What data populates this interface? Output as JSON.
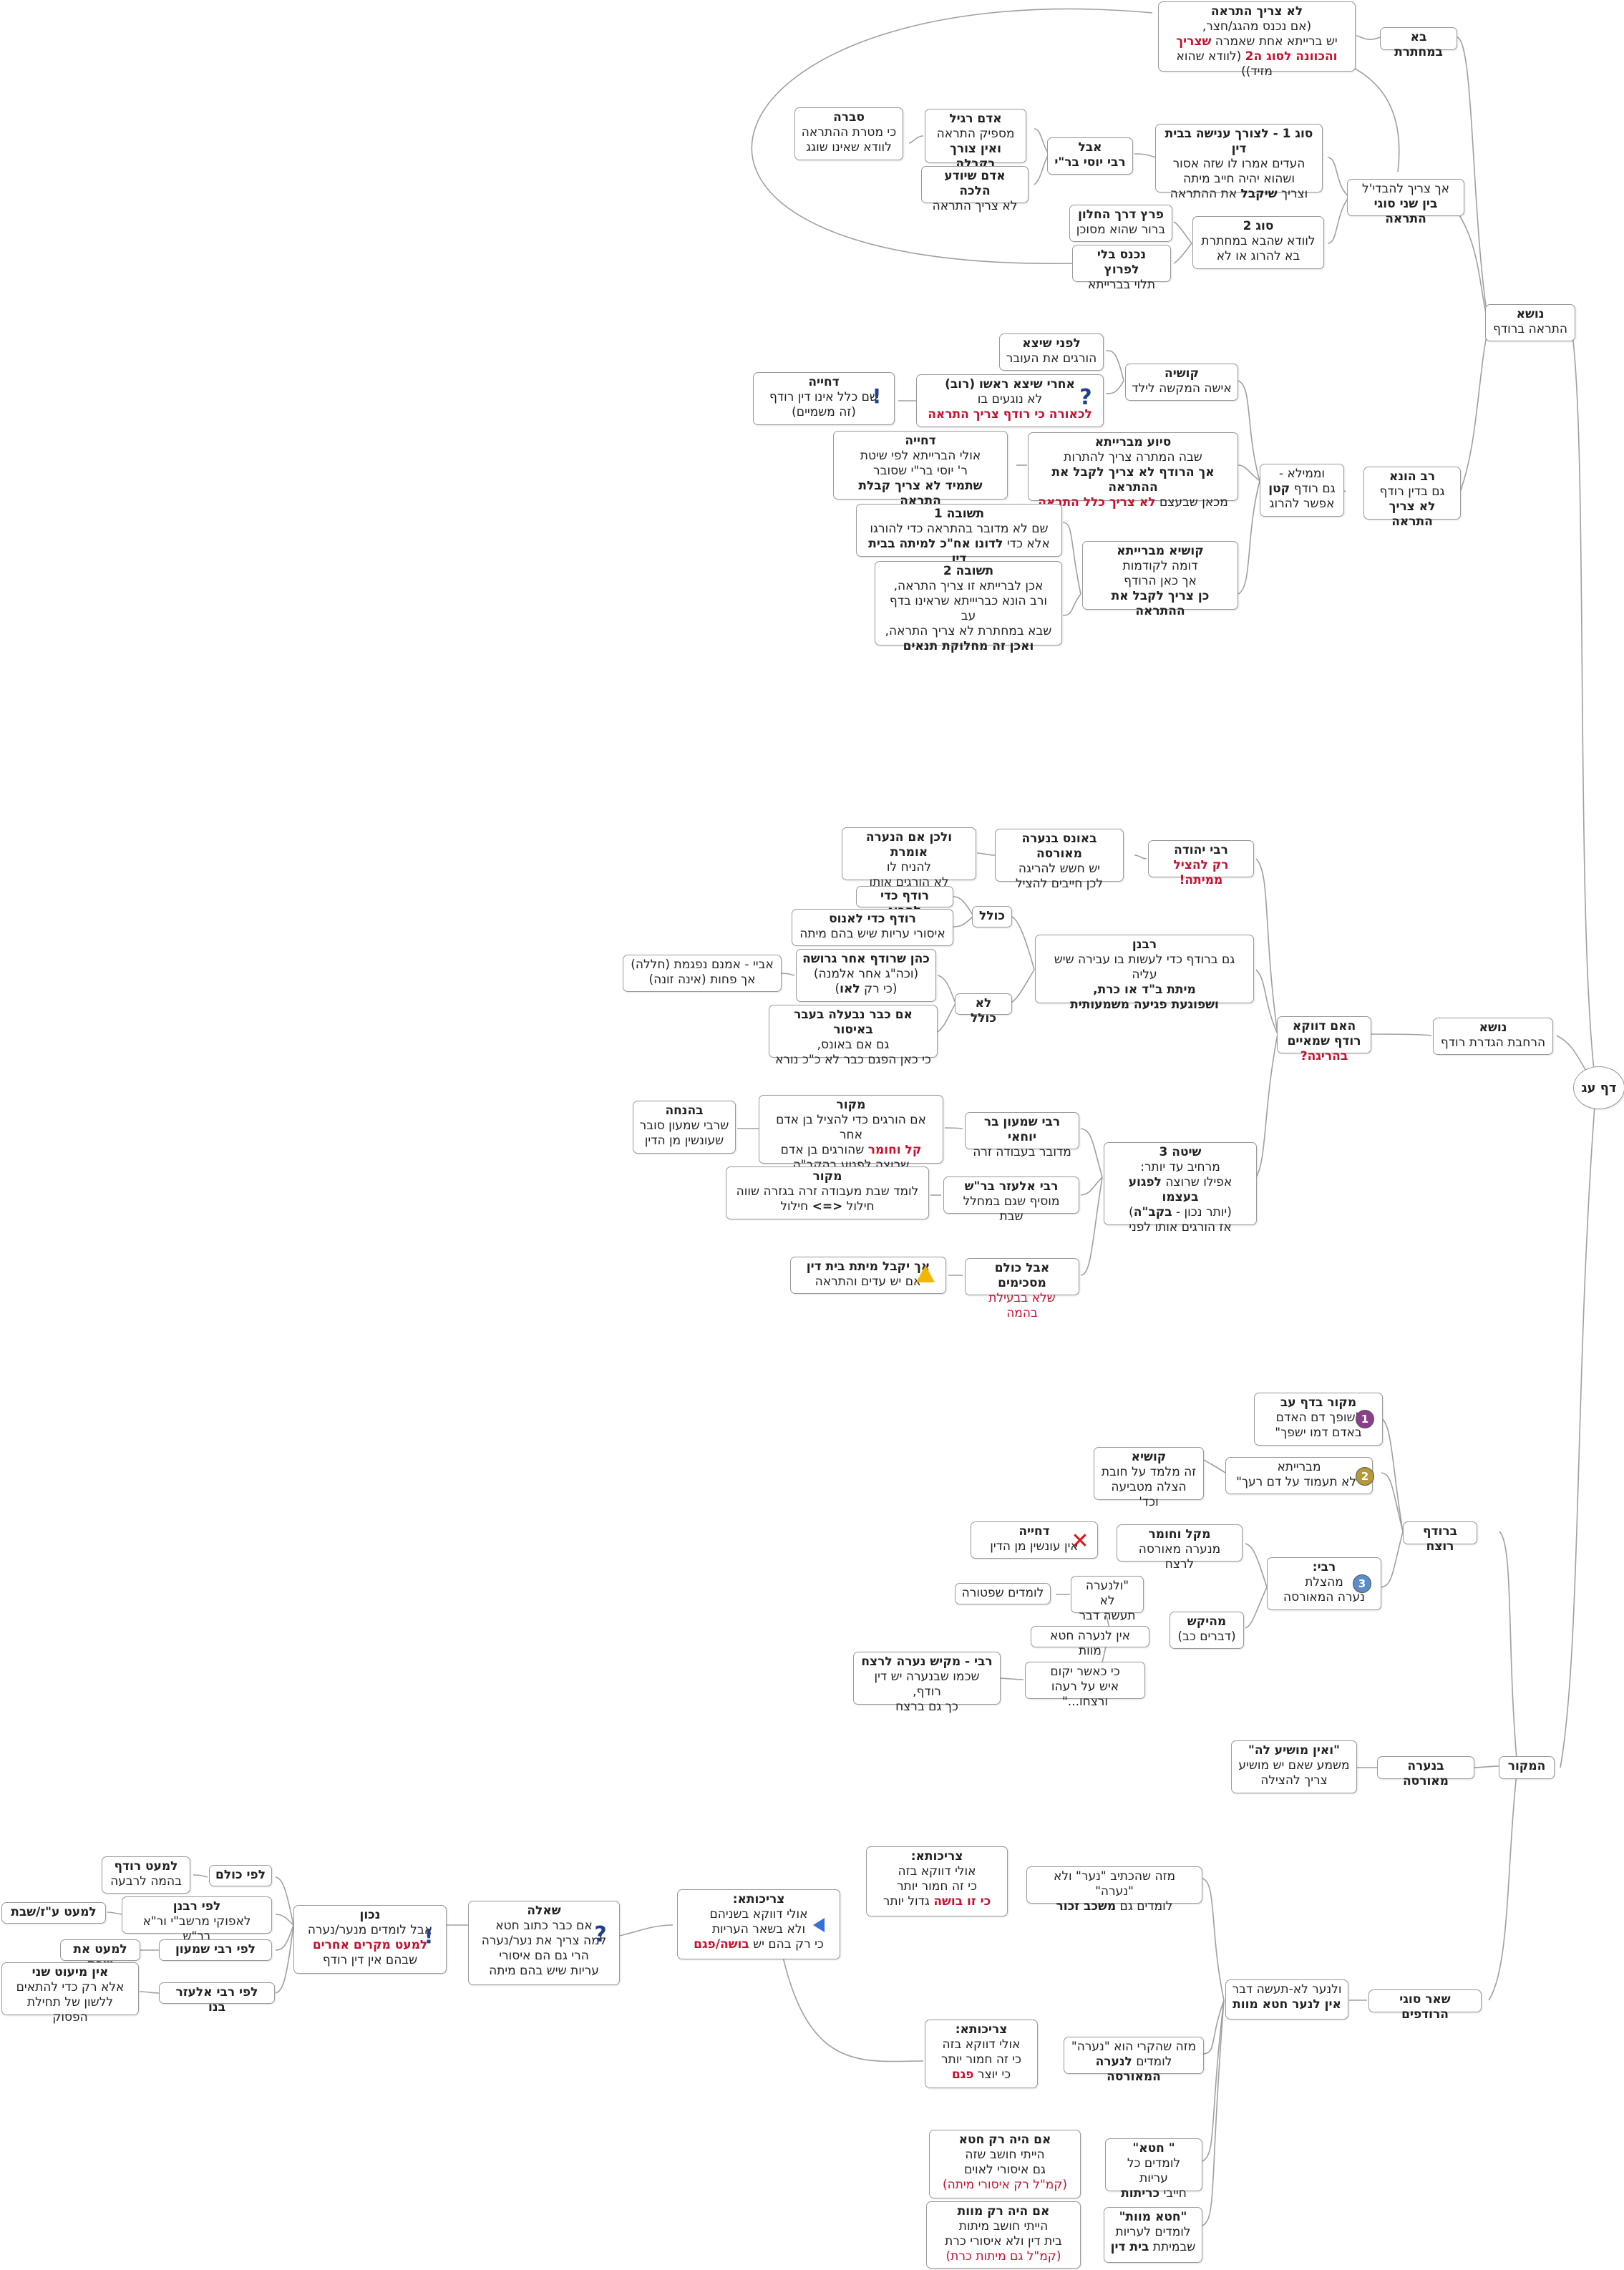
{
  "root": "דף עג",
  "s1": {
    "topic": [
      "נושא",
      "התראה ברודף"
    ],
    "ba": "בא במחתרת",
    "lo_tzarich": [
      "לא צריך התראה",
      "(אם נכנס מהגג/חצר,",
      "יש ברייתא אחת שאמרה ",
      "שצריך",
      "והכוונה לסוג ה2",
      " (לוודא שהוא מזיד))"
    ],
    "ach": [
      "אך צריך להבדי'ל",
      "בין שני סוגי התראה"
    ],
    "sug1": [
      "סוג 1 - לצורך ענישה בבית דין",
      "העדים אמרו לו שזה אסור",
      "ושהוא יהיה חייב מיתה",
      "וצריך ",
      "שיקבל",
      " את ההתראה"
    ],
    "aval": [
      "אבל",
      "רבי יוסי  בר\"י"
    ],
    "adam_ragil": [
      "אדם רגיל",
      "מספיק התראה",
      "ואין צורך בקבלה"
    ],
    "sevara": [
      "סברה",
      "כי מטרת ההתראה",
      "לוודא שאינו שוגג"
    ],
    "adam_yodea": [
      "אדם שיודע הלכה",
      "לא צריך התראה"
    ],
    "sug2": [
      "סוג 2",
      "לוודא שהבא במחתרת",
      "בא להרוג או לא"
    ],
    "paratz": [
      "פרץ דרך החלון",
      "ברור שהוא מסוכן"
    ],
    "nichnas": [
      "נכנס בלי  לפרוץ",
      "תלוי בברייתא"
    ]
  },
  "s2": {
    "rav_huna": [
      "רב הונא",
      "גם בדין רודף",
      "לא צריך התראה"
    ],
    "umimela": [
      "וממילא - ",
      "גם רודף ",
      "קטן",
      "אפשר להרוג"
    ],
    "kushia": [
      "קושיה",
      "אישה המקשה לילד"
    ],
    "lifnei": [
      "לפני שיצא",
      "הורגים את העובר"
    ],
    "acharei": [
      "אחרי שיצא ראשו (רוב)",
      "לא נוגעים בו",
      "לכאורה כי רודף צריך התראה"
    ],
    "dchiya1": [
      "דחייה",
      "שם כלל אינו דין רודף",
      "(זה משמיים)"
    ],
    "siyua": [
      "סיוע מברייתא",
      "שבה המתרה צריך להתרות",
      "אך הרודף לא צריך לקבל את ההתראה",
      "מכאן שבעצם ",
      "לא צריך כלל התראה"
    ],
    "dchiya2": [
      "דחייה",
      "אולי הברייתא לפי שיטת",
      "ר' יוסי בר\"י שסובר",
      "שתמיד לא צריך קבלת התראה"
    ],
    "kushia2": [
      "קושיא מברייתא",
      "דומה לקודמות",
      "אך כאן הרודף",
      "כן צריך לקבל את ההתראה"
    ],
    "tshuva1": [
      "תשובה 1",
      "שם לא מדובר בהתראה כדי להורגו",
      "אלא כדי ",
      "לדונו אח\"כ למיתה בבית דין"
    ],
    "tshuva2": [
      "תשובה 2",
      "אכן לברייתא זו צריך התראה,",
      "ורב הונא כבריייתא שראינו בדף עב",
      "שבא במחתרת לא צריך התראה,",
      "ואכן זה מחלוקת תנאים"
    ]
  },
  "s3": {
    "topic": [
      "נושא",
      "הרחבת הגדרת רודף"
    ],
    "haim": [
      "האם דווקא",
      "רודף שמאיים ",
      "בהריגה?"
    ],
    "r_yehuda": [
      "רבי יהודה",
      "רק להציל ממיתה!"
    ],
    "beones": [
      "באונס בנערה מאורסה",
      "יש חשש להריגה",
      "לכן חייבים להציל"
    ],
    "velachen": [
      "ולכן אם הנערה אומרת",
      "להניח לו",
      "לא הורגים אותו"
    ],
    "rabanan": [
      "רבנן",
      "גם ברודף כדי לעשות בו עבירה שיש עליה",
      "מיתת ב\"ד או כרת,",
      "ושפוגעת פגיעה משמעותית"
    ],
    "kolel": "כולל",
    "lo_kolel": "לא כולל",
    "rodef_laharog": "רודף כדי להרוג",
    "rodef_leanos": [
      "רודף כדי לאנוס",
      "איסורי עריות שיש בהם מיתה"
    ],
    "kohen": [
      "כהן שרודף אחר גרושה",
      "(וכה\"ג אחר אלמנה)",
      "(כי רק ",
      "לאו",
      ")"
    ],
    "abaye": [
      "אביי - אמנם נפגמת (חללה)",
      "אך פחות (אינה זונה)"
    ],
    "im_kvar": [
      "אם כבר נבעלה בעבר באיסור",
      "גם אם באונס,",
      "כי כאן הפגם כבר לא כ\"כ נורא"
    ],
    "shita3": [
      "שיטה 3",
      "מרחיב עד יותר:",
      "אפילו שרוצה ",
      "לפגוע בעצמו",
      "(יותר נכון - ",
      "בקב\"ה",
      ")",
      "אז הורגים אותו לפני"
    ],
    "rs_yochai": [
      "רבי שמעון בר יוחאי",
      "מדובר בעבודה זרה"
    ],
    "makor1": [
      "מקור",
      "אם הורגים כדי להציל בן אדם אחר",
      "קל וחומר",
      " שהורגים בן אדם",
      "שרוצה לפגוע בהקב\"ה"
    ],
    "behanacha": [
      "בהנחה",
      "שרבי שמעון סובר",
      "שעונשין מן הדין"
    ],
    "r_elazar": [
      "רבי אלעזר בר\"ש",
      "מוסיף שגם במחלל שבת"
    ],
    "makor2": [
      "מקור",
      "לומד שבת מעבודה זרה בגזרה שווה",
      "חילול ",
      "<=>",
      " חילול"
    ],
    "aval_kulam": [
      "אבל כולם מסכימים",
      "שלא בבעילת בהמה"
    ],
    "ach_yekabel": [
      "אך יקבל מיתת בית דין",
      "אם יש עדים והתראה"
    ]
  },
  "s4": {
    "makor": "המקור",
    "berodef": "ברודף רוצח",
    "m1": [
      "מקור בדף עב",
      "\"שופך דם האדם",
      "באדם דמו ישפך\""
    ],
    "m2": [
      "מברייתא",
      "\"לא תעמוד על דם רעך\""
    ],
    "kushia": [
      "קושיא",
      "זה מלמד על חובת",
      "הצלה מטביעה וכד'"
    ],
    "m3": [
      "רבי:",
      "מהצלת",
      "נערה המאורסה"
    ],
    "kal": [
      "מקל וחומר",
      "מנערה מאורסה לרצח"
    ],
    "dchiya": [
      "דחייה",
      "אין עונשין מן הדין"
    ],
    "heikesh": [
      "מהיקש",
      "(דברים כב)"
    ],
    "velanaara": [
      "\"ולנערה לא",
      "תעשה דבר"
    ],
    "lomdim_shpatur": "לומדים שפטורה",
    "ein": "אין לנערה חטא מוות",
    "ki_kaasher": [
      "כי כאשר יקום",
      "איש על רעהו ורצחו...\""
    ],
    "rabbi_makish": [
      "רבי - מקיש נערה לרצח",
      "שכמו שבנערה יש דין רודף,",
      "כך גם ברצח"
    ],
    "benaara": "בנערה מאורסה",
    "vein": [
      "\"ואין מושיע לה\"",
      "משמע שאם יש מושיע",
      "צריך להצילה"
    ]
  },
  "s5": {
    "shear": "שאר סוגי הרודפים",
    "velanaar": [
      "ולנער לא-תעשה דבר",
      "אין לנער חטא מוות"
    ],
    "mize1": [
      "מזה שהכתיב \"נער\" ולא \"נערה\"",
      "לומדים גם ",
      "משכב זכור"
    ],
    "tzrichuta1": [
      "צריכותא:",
      "אולי דווקא בזה",
      "כי זה חמור יותר",
      "כי זו בושה",
      " גדול יותר"
    ],
    "tzrichuta2": [
      "צריכותא:",
      "אולי דווקא בשניהם",
      "ולא בשאר העריות",
      "כי רק בהם יש ",
      "בושה/פגם"
    ],
    "sheela": [
      "שאלה",
      "אם כבר כתוב חטא",
      "למה צריך את נער/נערה",
      "הרי גם הם איסורי",
      "עריות שיש בהם מיתה"
    ],
    "nachon": [
      "נכון",
      "אבל לומדים מנער/נערה",
      "למעט מקרים אחרים",
      "שבהם אין דין רודף"
    ],
    "lefi_kulam": "לפי כולם",
    "lemaet_rodef": [
      "למעט רודף",
      "בהמה לרבעה"
    ],
    "lefi_rabanan": [
      "לפי רבנן",
      "לאפוקי מרשב\"י ור\"א בר\"ש"
    ],
    "lemaet_az": "למעט ע\"ז/שבת",
    "lefi_rs": "לפי רבי שמעון",
    "lemaet_shabat": "למעט את שבת",
    "lefi_re": "לפי רבי אלעזר בנו",
    "ein_miut": [
      "אין מיעוט שני",
      "אלא רק כדי להתאים",
      "ללשון של תחילת הפסוק"
    ],
    "mize2": [
      "מזה שהקרי הוא \"נערה\"",
      "לומדים ",
      "לנערה המאורסה"
    ],
    "tzrichuta3": [
      "צריכותא:",
      "אולי דווקא בזה",
      "כי זה חמור יותר",
      "כי יוצר ",
      "פגם"
    ],
    "chet": [
      "\" חטא\"",
      "לומדים כל עריות",
      "חייבי ",
      "כריתות"
    ],
    "im_chet": [
      "אם היה רק חטא",
      "הייתי חושב שזה",
      "גם איסורי לאוים",
      "(קמ\"ל רק איסורי מיתה)"
    ],
    "chet_mavet": [
      "\"חטא מוות\"",
      "לומדים לעריות",
      "שבמיתת ",
      "בית דין"
    ],
    "im_mavet": [
      "אם היה רק מוות",
      "הייתי חושב מיתות",
      "בית דין ולא איסורי כרת",
      "(קמ\"ל גם מיתות כרת)"
    ]
  },
  "icons": {
    "question": "?",
    "exclaim": "!",
    "cross": "✕",
    "n1": "1",
    "n2": "2",
    "n3": "3"
  },
  "colors": {
    "red": "#c4122f",
    "line": "#a0a0a0",
    "blue": "#3a6fd8"
  }
}
